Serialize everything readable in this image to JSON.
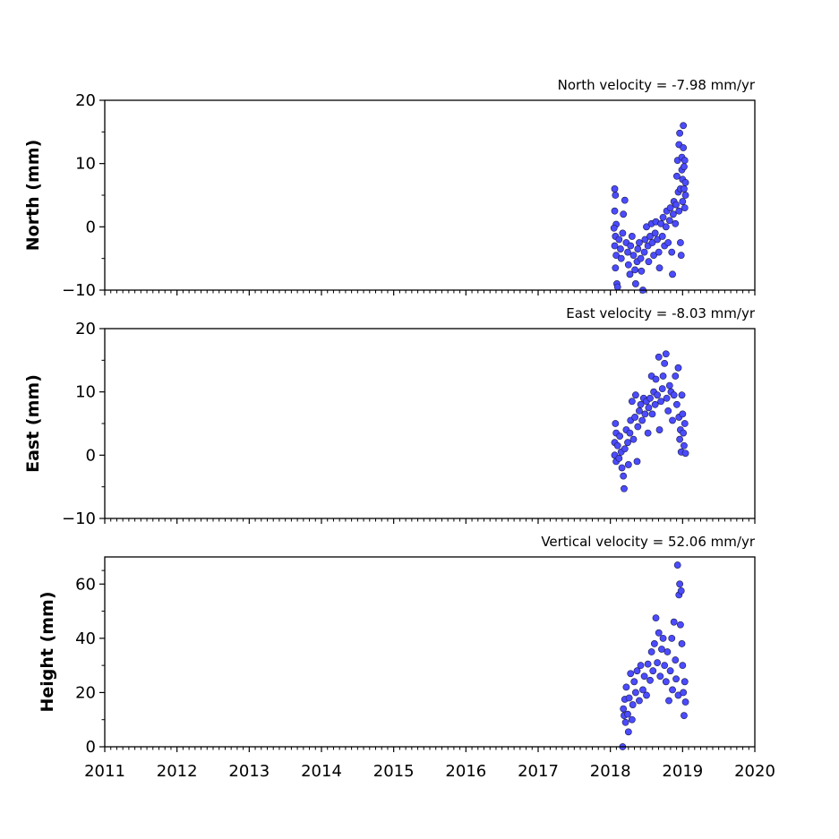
{
  "chart_data": [
    {
      "type": "scatter",
      "ylabel": "North (mm)",
      "title": "North velocity = -7.98 mm/yr",
      "ylim": [
        -10,
        20
      ],
      "yticks": [
        -10,
        0,
        10,
        20
      ],
      "xlim": [
        2011,
        2020
      ],
      "marker_color": "#4b4bff",
      "points": [
        [
          2018.06,
          6.0
        ],
        [
          2018.07,
          5.0
        ],
        [
          2018.06,
          2.5
        ],
        [
          2018.08,
          0.4
        ],
        [
          2018.05,
          -0.2
        ],
        [
          2018.07,
          -1.5
        ],
        [
          2018.06,
          -3.0
        ],
        [
          2018.08,
          -4.5
        ],
        [
          2018.07,
          -6.5
        ],
        [
          2018.09,
          -9.0
        ],
        [
          2018.1,
          -9.5
        ],
        [
          2018.12,
          -2.0
        ],
        [
          2018.14,
          -3.5
        ],
        [
          2018.15,
          -5.0
        ],
        [
          2018.17,
          -1.0
        ],
        [
          2018.18,
          2.0
        ],
        [
          2018.2,
          4.2
        ],
        [
          2018.22,
          -2.5
        ],
        [
          2018.24,
          -4.0
        ],
        [
          2018.25,
          -6.0
        ],
        [
          2018.27,
          -7.5
        ],
        [
          2018.28,
          -3.0
        ],
        [
          2018.3,
          -1.5
        ],
        [
          2018.32,
          -4.5
        ],
        [
          2018.34,
          -6.8
        ],
        [
          2018.35,
          -9.0
        ],
        [
          2018.37,
          -5.5
        ],
        [
          2018.38,
          -3.5
        ],
        [
          2018.4,
          -2.5
        ],
        [
          2018.42,
          -5.0
        ],
        [
          2018.43,
          -7.0
        ],
        [
          2018.45,
          -10.0
        ],
        [
          2018.47,
          -4.0
        ],
        [
          2018.48,
          -2.0
        ],
        [
          2018.5,
          0.0
        ],
        [
          2018.52,
          -3.0
        ],
        [
          2018.53,
          -5.5
        ],
        [
          2018.55,
          -1.5
        ],
        [
          2018.57,
          0.5
        ],
        [
          2018.58,
          -2.5
        ],
        [
          2018.6,
          -4.5
        ],
        [
          2018.62,
          -1.0
        ],
        [
          2018.63,
          0.8
        ],
        [
          2018.65,
          -2.0
        ],
        [
          2018.67,
          -4.0
        ],
        [
          2018.68,
          -6.5
        ],
        [
          2018.7,
          0.5
        ],
        [
          2018.72,
          -1.5
        ],
        [
          2018.73,
          1.5
        ],
        [
          2018.75,
          -3.0
        ],
        [
          2018.77,
          0.0
        ],
        [
          2018.78,
          2.5
        ],
        [
          2018.8,
          -2.5
        ],
        [
          2018.82,
          1.0
        ],
        [
          2018.83,
          3.0
        ],
        [
          2018.85,
          -4.0
        ],
        [
          2018.86,
          -7.5
        ],
        [
          2018.87,
          2.0
        ],
        [
          2018.88,
          4.0
        ],
        [
          2018.9,
          0.5
        ],
        [
          2018.91,
          3.5
        ],
        [
          2018.92,
          8.0
        ],
        [
          2018.93,
          10.5
        ],
        [
          2018.94,
          5.5
        ],
        [
          2018.95,
          2.5
        ],
        [
          2018.95,
          13.0
        ],
        [
          2018.96,
          14.8
        ],
        [
          2018.97,
          6.0
        ],
        [
          2018.97,
          -2.5
        ],
        [
          2018.98,
          -4.5
        ],
        [
          2018.99,
          9.0
        ],
        [
          2018.99,
          11.0
        ],
        [
          2019.0,
          7.5
        ],
        [
          2019.0,
          4.0
        ],
        [
          2019.01,
          12.5
        ],
        [
          2019.01,
          16.0
        ],
        [
          2019.02,
          9.5
        ],
        [
          2019.02,
          6.0
        ],
        [
          2019.03,
          3.0
        ],
        [
          2019.03,
          10.5
        ],
        [
          2019.04,
          7.0
        ],
        [
          2019.04,
          5.0
        ]
      ]
    },
    {
      "type": "scatter",
      "ylabel": "East (mm)",
      "title": "East velocity = -8.03 mm/yr",
      "ylim": [
        -10,
        20
      ],
      "yticks": [
        -10,
        0,
        10,
        20
      ],
      "xlim": [
        2011,
        2020
      ],
      "marker_color": "#4b4bff",
      "points": [
        [
          2018.06,
          0.0
        ],
        [
          2018.06,
          2.0
        ],
        [
          2018.07,
          5.0
        ],
        [
          2018.08,
          3.5
        ],
        [
          2018.08,
          -1.0
        ],
        [
          2018.1,
          1.5
        ],
        [
          2018.12,
          -0.5
        ],
        [
          2018.13,
          3.0
        ],
        [
          2018.15,
          0.5
        ],
        [
          2018.16,
          -2.0
        ],
        [
          2018.18,
          -3.3
        ],
        [
          2018.19,
          -5.3
        ],
        [
          2018.2,
          1.0
        ],
        [
          2018.22,
          4.0
        ],
        [
          2018.24,
          2.0
        ],
        [
          2018.25,
          -1.5
        ],
        [
          2018.27,
          3.5
        ],
        [
          2018.28,
          5.5
        ],
        [
          2018.3,
          8.5
        ],
        [
          2018.32,
          2.5
        ],
        [
          2018.34,
          6.0
        ],
        [
          2018.35,
          9.5
        ],
        [
          2018.37,
          -1.0
        ],
        [
          2018.38,
          4.5
        ],
        [
          2018.4,
          7.0
        ],
        [
          2018.42,
          8.0
        ],
        [
          2018.44,
          5.5
        ],
        [
          2018.46,
          9.0
        ],
        [
          2018.48,
          6.5
        ],
        [
          2018.5,
          8.5
        ],
        [
          2018.52,
          3.5
        ],
        [
          2018.53,
          7.5
        ],
        [
          2018.55,
          9.0
        ],
        [
          2018.57,
          12.5
        ],
        [
          2018.58,
          6.5
        ],
        [
          2018.6,
          10.0
        ],
        [
          2018.62,
          8.0
        ],
        [
          2018.63,
          12.0
        ],
        [
          2018.65,
          9.5
        ],
        [
          2018.67,
          15.5
        ],
        [
          2018.68,
          4.0
        ],
        [
          2018.7,
          8.5
        ],
        [
          2018.72,
          10.5
        ],
        [
          2018.73,
          12.5
        ],
        [
          2018.75,
          14.5
        ],
        [
          2018.77,
          16.0
        ],
        [
          2018.78,
          9.0
        ],
        [
          2018.8,
          7.0
        ],
        [
          2018.82,
          11.0
        ],
        [
          2018.84,
          10.0
        ],
        [
          2018.86,
          5.5
        ],
        [
          2018.88,
          9.5
        ],
        [
          2018.9,
          12.5
        ],
        [
          2018.92,
          8.0
        ],
        [
          2018.94,
          13.8
        ],
        [
          2018.95,
          6.0
        ],
        [
          2018.96,
          2.5
        ],
        [
          2018.97,
          4.0
        ],
        [
          2018.98,
          0.5
        ],
        [
          2018.99,
          9.5
        ],
        [
          2019.0,
          6.5
        ],
        [
          2019.01,
          3.5
        ],
        [
          2019.02,
          1.5
        ],
        [
          2019.03,
          5.0
        ],
        [
          2019.04,
          0.3
        ]
      ]
    },
    {
      "type": "scatter",
      "ylabel": "Height (mm)",
      "title": "Vertical velocity = 52.06 mm/yr",
      "ylim": [
        0,
        70
      ],
      "yticks": [
        0,
        20,
        40,
        60
      ],
      "xlim": [
        2011,
        2020
      ],
      "xticks": [
        "2011",
        "2012",
        "2013",
        "2014",
        "2015",
        "2016",
        "2017",
        "2018",
        "2019",
        "2020"
      ],
      "marker_color": "#4b4bff",
      "points": [
        [
          2018.17,
          0.0
        ],
        [
          2018.18,
          14.0
        ],
        [
          2018.19,
          11.5
        ],
        [
          2018.2,
          17.5
        ],
        [
          2018.21,
          9.0
        ],
        [
          2018.22,
          22.0
        ],
        [
          2018.24,
          12.0
        ],
        [
          2018.25,
          5.5
        ],
        [
          2018.26,
          18.0
        ],
        [
          2018.28,
          27.0
        ],
        [
          2018.3,
          10.0
        ],
        [
          2018.31,
          15.5
        ],
        [
          2018.33,
          24.0
        ],
        [
          2018.35,
          20.0
        ],
        [
          2018.37,
          28.0
        ],
        [
          2018.4,
          17.0
        ],
        [
          2018.42,
          30.0
        ],
        [
          2018.45,
          21.0
        ],
        [
          2018.47,
          26.0
        ],
        [
          2018.5,
          19.0
        ],
        [
          2018.52,
          30.5
        ],
        [
          2018.55,
          24.5
        ],
        [
          2018.57,
          35.0
        ],
        [
          2018.59,
          28.0
        ],
        [
          2018.61,
          38.0
        ],
        [
          2018.63,
          47.5
        ],
        [
          2018.65,
          31.0
        ],
        [
          2018.67,
          42.0
        ],
        [
          2018.69,
          26.0
        ],
        [
          2018.71,
          36.0
        ],
        [
          2018.73,
          40.0
        ],
        [
          2018.75,
          30.0
        ],
        [
          2018.77,
          24.0
        ],
        [
          2018.79,
          35.0
        ],
        [
          2018.81,
          17.0
        ],
        [
          2018.83,
          28.0
        ],
        [
          2018.85,
          40.0
        ],
        [
          2018.86,
          21.0
        ],
        [
          2018.88,
          46.0
        ],
        [
          2018.9,
          32.0
        ],
        [
          2018.91,
          25.0
        ],
        [
          2018.93,
          67.0
        ],
        [
          2018.94,
          19.0
        ],
        [
          2018.95,
          56.0
        ],
        [
          2018.96,
          60.0
        ],
        [
          2018.97,
          45.0
        ],
        [
          2018.98,
          57.5
        ],
        [
          2018.99,
          38.0
        ],
        [
          2019.0,
          30.0
        ],
        [
          2019.01,
          20.0
        ],
        [
          2019.02,
          11.5
        ],
        [
          2019.03,
          24.0
        ],
        [
          2019.04,
          16.5
        ]
      ]
    }
  ]
}
